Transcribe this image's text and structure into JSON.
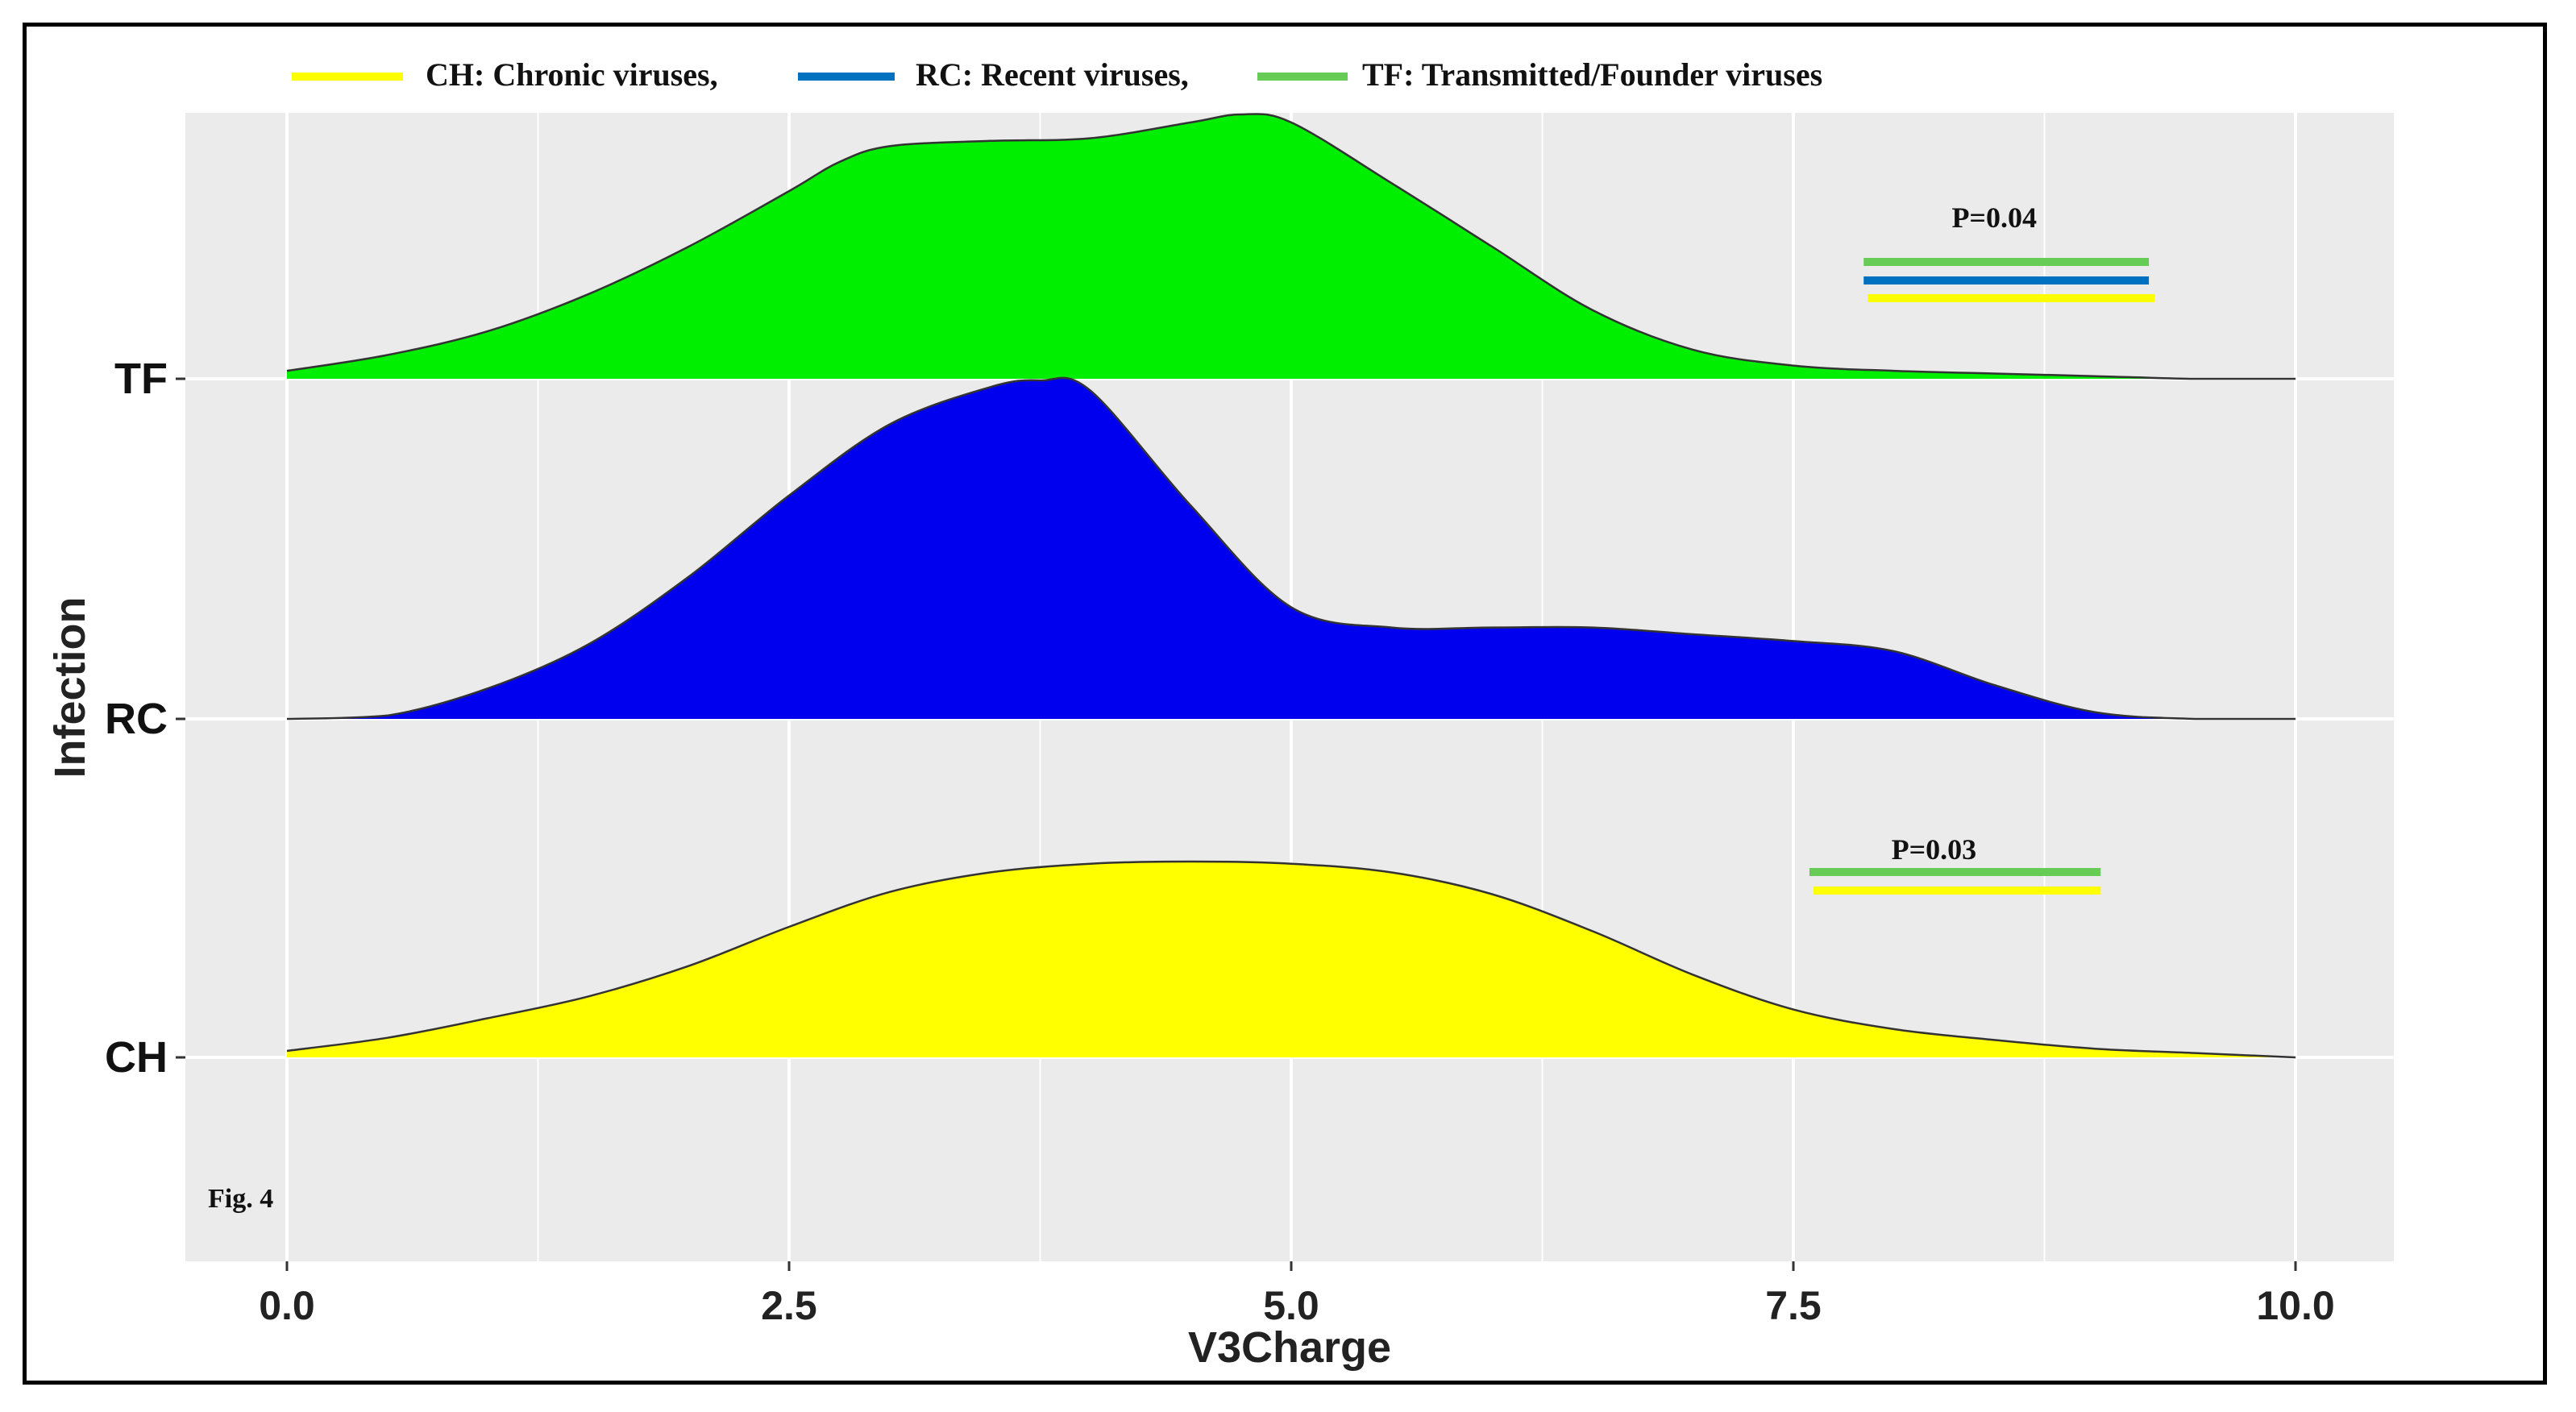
{
  "chart_data": {
    "type": "area",
    "subtype": "ridgeline-density",
    "xlabel": "V3Charge",
    "ylabel": "Infection",
    "xlim": [
      0.0,
      10.0
    ],
    "x_ticks": [
      "0.0",
      "2.5",
      "5.0",
      "7.5",
      "10.0"
    ],
    "categories": [
      "TF",
      "RC",
      "CH"
    ],
    "grid": true,
    "legend_position": "top",
    "legend": [
      {
        "label": "CH: Chronic viruses,",
        "color": "#ffff00"
      },
      {
        "label": "RC:  Recent viruses,",
        "color": "#0070c0"
      },
      {
        "label": "TF: Transmitted/Founder viruses",
        "color": "#66cc55"
      }
    ],
    "series": [
      {
        "key": "TF",
        "fill": "#00ee00",
        "x": [
          0,
          0.5,
          1,
          1.5,
          2,
          2.5,
          2.75,
          3,
          3.5,
          4,
          4.5,
          4.75,
          5,
          5.5,
          6,
          6.5,
          7,
          7.5,
          8,
          8.5,
          9,
          9.5,
          10
        ],
        "density": [
          0.03,
          0.09,
          0.18,
          0.32,
          0.5,
          0.71,
          0.82,
          0.88,
          0.9,
          0.91,
          0.97,
          1.0,
          0.97,
          0.74,
          0.5,
          0.26,
          0.11,
          0.05,
          0.03,
          0.02,
          0.01,
          0.0,
          0.0
        ]
      },
      {
        "key": "RC",
        "fill": "#0000ee",
        "x": [
          0,
          0.5,
          1,
          1.5,
          2,
          2.5,
          3,
          3.5,
          3.75,
          4,
          4.5,
          5,
          5.5,
          6,
          6.5,
          7,
          7.5,
          8,
          8.5,
          9,
          9.5,
          10
        ],
        "density": [
          0.0,
          0.01,
          0.09,
          0.22,
          0.42,
          0.66,
          0.87,
          0.98,
          1.0,
          0.97,
          0.63,
          0.33,
          0.27,
          0.27,
          0.27,
          0.25,
          0.23,
          0.2,
          0.1,
          0.02,
          0.0,
          0.0
        ]
      },
      {
        "key": "CH",
        "fill": "#ffff00",
        "x": [
          0,
          0.5,
          1,
          1.5,
          2,
          2.5,
          3,
          3.5,
          4,
          4.5,
          5,
          5.5,
          6,
          6.5,
          7,
          7.5,
          8,
          8.5,
          9,
          9.5,
          10
        ],
        "density": [
          0.03,
          0.09,
          0.18,
          0.28,
          0.42,
          0.6,
          0.76,
          0.85,
          0.89,
          0.9,
          0.89,
          0.85,
          0.75,
          0.58,
          0.38,
          0.22,
          0.13,
          0.08,
          0.04,
          0.02,
          0.0
        ]
      }
    ],
    "annotations": [
      {
        "text": "P=0.04",
        "row": "TF",
        "x_center": 8.5,
        "bars": [
          {
            "x0": 7.85,
            "x1": 9.27,
            "color": "#66cc55"
          },
          {
            "x0": 7.85,
            "x1": 9.27,
            "color": "#0070c0"
          },
          {
            "x0": 7.87,
            "x1": 9.3,
            "color": "#ffff00"
          }
        ]
      },
      {
        "text": "P=0.03",
        "row": "CH",
        "x_center": 8.2,
        "bars": [
          {
            "x0": 7.58,
            "x1": 9.03,
            "color": "#66cc55"
          },
          {
            "x0": 7.6,
            "x1": 9.03,
            "color": "#ffff00"
          }
        ]
      }
    ],
    "figure_label": "Fig. 4"
  }
}
